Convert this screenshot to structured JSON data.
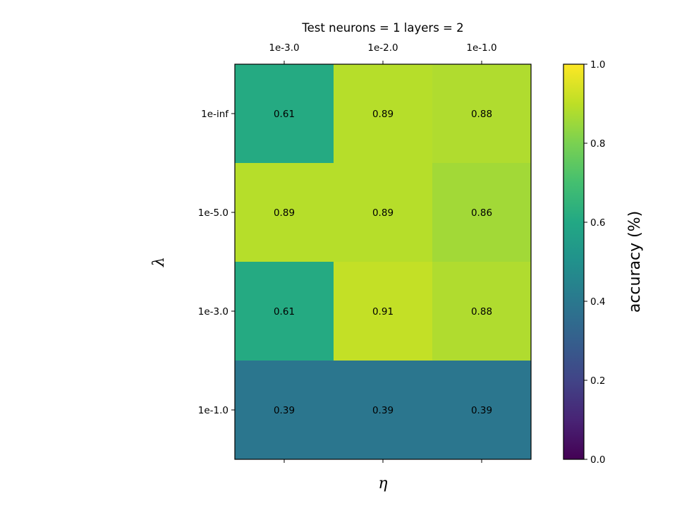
{
  "chart_data": {
    "type": "heatmap",
    "title": "Test neurons = 1 layers = 2",
    "xlabel": "η",
    "ylabel": "λ",
    "x_categories": [
      "1e-3.0",
      "1e-2.0",
      "1e-1.0"
    ],
    "y_categories": [
      "1e-inf",
      "1e-5.0",
      "1e-3.0",
      "1e-1.0"
    ],
    "values": [
      [
        0.61,
        0.89,
        0.88
      ],
      [
        0.89,
        0.89,
        0.86
      ],
      [
        0.61,
        0.91,
        0.88
      ],
      [
        0.39,
        0.39,
        0.39
      ]
    ],
    "cell_labels": [
      [
        "0.61",
        "0.89",
        "0.88"
      ],
      [
        "0.89",
        "0.89",
        "0.86"
      ],
      [
        "0.61",
        "0.91",
        "0.88"
      ],
      [
        "0.39",
        "0.39",
        "0.39"
      ]
    ],
    "colormap": "viridis",
    "vmin": 0.0,
    "vmax": 1.0,
    "colorbar": {
      "label": "accuracy (%)",
      "ticks": [
        "0.0",
        "0.2",
        "0.4",
        "0.6",
        "0.8",
        "1.0"
      ],
      "tick_values": [
        0.0,
        0.2,
        0.4,
        0.6,
        0.8,
        1.0
      ]
    },
    "x_tick_position": "top"
  }
}
